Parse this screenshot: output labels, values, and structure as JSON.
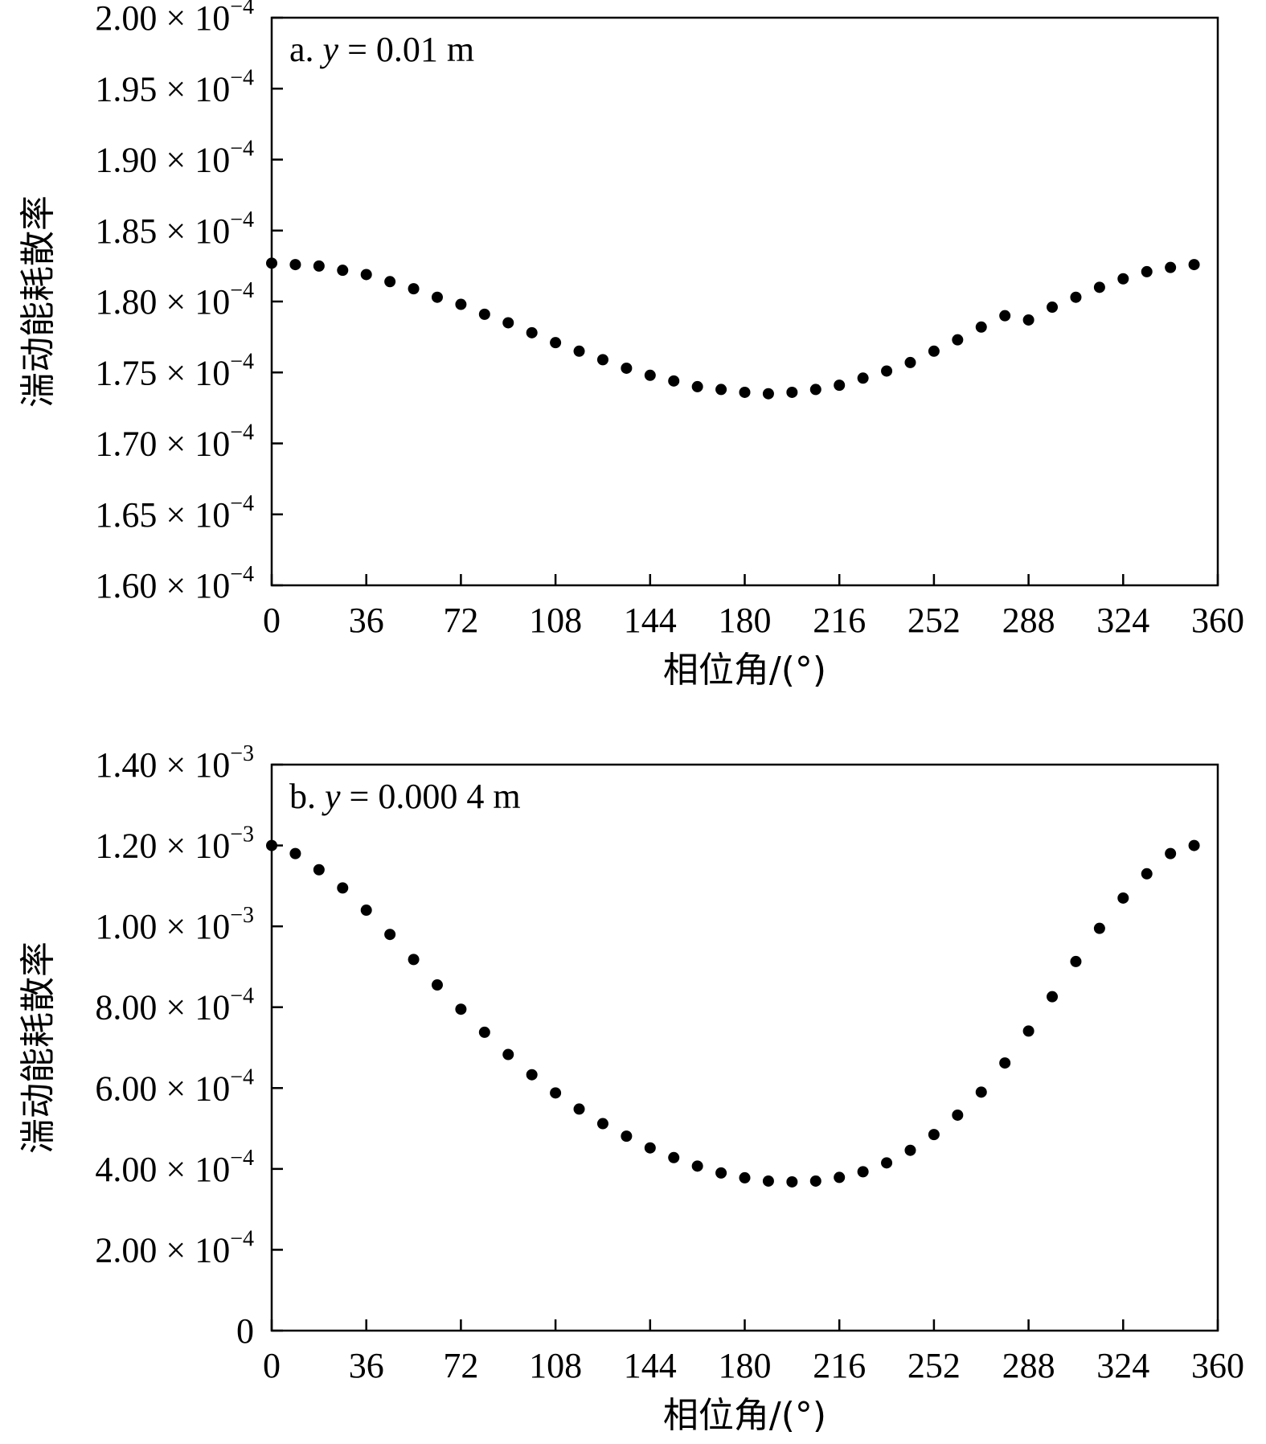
{
  "chart_data": [
    {
      "type": "scatter",
      "panel_label": {
        "prefix": "a. ",
        "var": "y",
        "rest": " = 0.01 m"
      },
      "xlabel": "相位角/(°)",
      "ylabel": "湍动能耗散率",
      "xlim": [
        0,
        360
      ],
      "ylim": [
        0.00016,
        0.0002
      ],
      "xticks": [
        0,
        36,
        72,
        108,
        144,
        180,
        216,
        252,
        288,
        324,
        360
      ],
      "xtick_labels": [
        "0",
        "36",
        "72",
        "108",
        "144",
        "180",
        "216",
        "252",
        "288",
        "324",
        "360"
      ],
      "yticks": [
        {
          "value": 0.00016,
          "mantissa": "1.60",
          "exponent": "−4"
        },
        {
          "value": 0.000165,
          "mantissa": "1.65",
          "exponent": "−4"
        },
        {
          "value": 0.00017,
          "mantissa": "1.70",
          "exponent": "−4"
        },
        {
          "value": 0.000175,
          "mantissa": "1.75",
          "exponent": "−4"
        },
        {
          "value": 0.00018,
          "mantissa": "1.80",
          "exponent": "−4"
        },
        {
          "value": 0.000185,
          "mantissa": "1.85",
          "exponent": "−4"
        },
        {
          "value": 0.00019,
          "mantissa": "1.90",
          "exponent": "−4"
        },
        {
          "value": 0.000195,
          "mantissa": "1.95",
          "exponent": "−4"
        },
        {
          "value": 0.0002,
          "mantissa": "2.00",
          "exponent": "−4"
        }
      ],
      "x": [
        0,
        9,
        18,
        27,
        36,
        45,
        54,
        63,
        72,
        81,
        90,
        99,
        108,
        117,
        126,
        135,
        144,
        153,
        162,
        171,
        180,
        189,
        198,
        207,
        216,
        225,
        234,
        243,
        252,
        261,
        270,
        279,
        288,
        297,
        306,
        315,
        324,
        333,
        342,
        351
      ],
      "y": [
        0.0001827,
        0.0001826,
        0.0001825,
        0.0001822,
        0.0001819,
        0.0001814,
        0.0001809,
        0.0001803,
        0.0001798,
        0.0001791,
        0.0001785,
        0.0001778,
        0.0001771,
        0.0001765,
        0.0001759,
        0.0001753,
        0.0001748,
        0.0001744,
        0.000174,
        0.0001738,
        0.0001736,
        0.0001735,
        0.0001736,
        0.0001738,
        0.0001741,
        0.0001746,
        0.0001751,
        0.0001757,
        0.0001765,
        0.0001773,
        0.0001782,
        0.000179,
        0.0001787,
        0.0001796,
        0.0001803,
        0.000181,
        0.0001816,
        0.0001821,
        0.0001824,
        0.0001826
      ],
      "grid": false,
      "marker_color": "#000000"
    },
    {
      "type": "scatter",
      "panel_label": {
        "prefix": "b. ",
        "var": "y",
        "rest": " = 0.000 4 m"
      },
      "xlabel": "相位角/(°)",
      "ylabel": "湍动能耗散率",
      "xlim": [
        0,
        360
      ],
      "ylim": [
        0,
        0.0014
      ],
      "xticks": [
        0,
        36,
        72,
        108,
        144,
        180,
        216,
        252,
        288,
        324,
        360
      ],
      "xtick_labels": [
        "0",
        "36",
        "72",
        "108",
        "144",
        "180",
        "216",
        "252",
        "288",
        "324",
        "360"
      ],
      "yticks": [
        {
          "value": 0,
          "mantissa": "0",
          "exponent": ""
        },
        {
          "value": 0.0002,
          "mantissa": "2.00",
          "exponent": "−4"
        },
        {
          "value": 0.0004,
          "mantissa": "4.00",
          "exponent": "−4"
        },
        {
          "value": 0.0006,
          "mantissa": "6.00",
          "exponent": "−4"
        },
        {
          "value": 0.0008,
          "mantissa": "8.00",
          "exponent": "−4"
        },
        {
          "value": 0.001,
          "mantissa": "1.00",
          "exponent": "−3"
        },
        {
          "value": 0.0012,
          "mantissa": "1.20",
          "exponent": "−3"
        },
        {
          "value": 0.0014,
          "mantissa": "1.40",
          "exponent": "−3"
        }
      ],
      "x": [
        0,
        9,
        18,
        27,
        36,
        45,
        54,
        63,
        72,
        81,
        90,
        99,
        108,
        117,
        126,
        135,
        144,
        153,
        162,
        171,
        180,
        189,
        198,
        207,
        216,
        225,
        234,
        243,
        252,
        261,
        270,
        279,
        288,
        297,
        306,
        315,
        324,
        333,
        342,
        351
      ],
      "y": [
        0.0012,
        0.00118,
        0.00114,
        0.001095,
        0.00104,
        0.00098,
        0.000918,
        0.000855,
        0.000795,
        0.000738,
        0.000683,
        0.000633,
        0.000588,
        0.000548,
        0.000512,
        0.000481,
        0.000452,
        0.000428,
        0.000407,
        0.00039,
        0.000378,
        0.00037,
        0.000368,
        0.00037,
        0.000379,
        0.000393,
        0.000415,
        0.000446,
        0.000485,
        0.000533,
        0.00059,
        0.000662,
        0.000741,
        0.000826,
        0.000913,
        0.000995,
        0.00107,
        0.00113,
        0.00118,
        0.0012
      ],
      "grid": false,
      "marker_color": "#000000"
    }
  ]
}
